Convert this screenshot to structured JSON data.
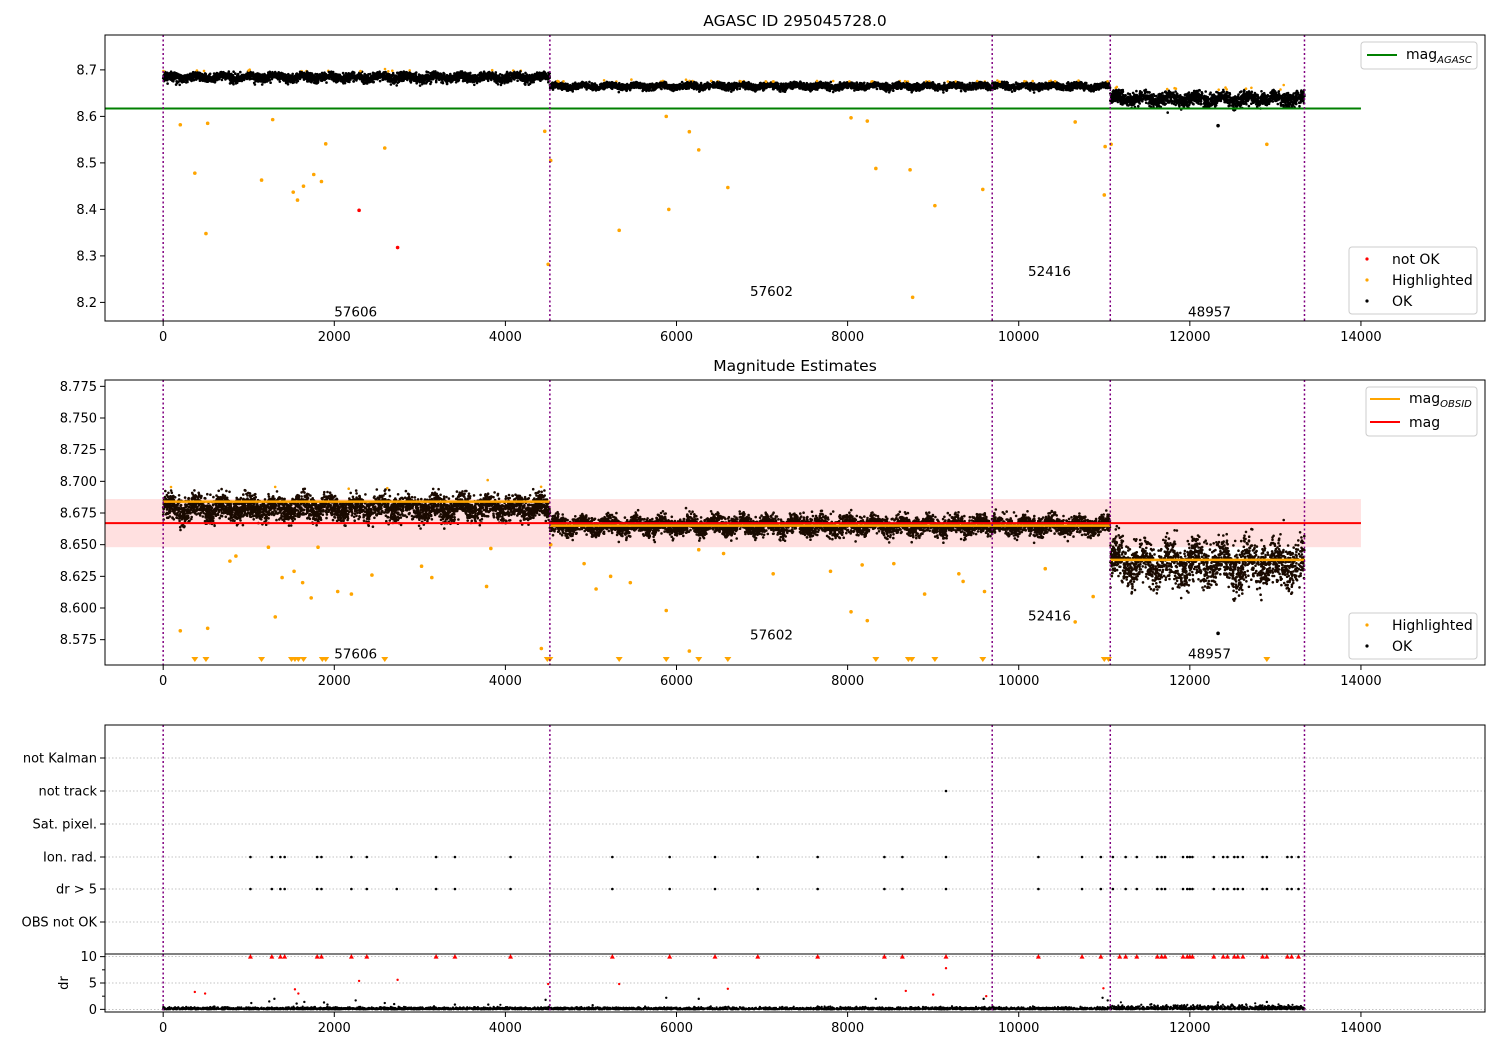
{
  "figure": {
    "title": "AGASC ID 295045728.0"
  },
  "chart_data": [
    {
      "type": "scatter",
      "title": "AGASC ID 295045728.0",
      "xlim": [
        -680,
        15450
      ],
      "ylim": [
        8.16,
        8.775
      ],
      "xticks": [
        0,
        2000,
        4000,
        6000,
        8000,
        10000,
        12000,
        14000
      ],
      "xtick_labels": [
        "0",
        "2000",
        "4000",
        "6000",
        "8000",
        "10000",
        "12000",
        "14000"
      ],
      "yticks": [
        8.2,
        8.3,
        8.4,
        8.5,
        8.6,
        8.7
      ],
      "ytick_labels": [
        "8.2",
        "8.3",
        "8.4",
        "8.5",
        "8.6",
        "8.7"
      ],
      "obs_boundaries": [
        0,
        4520,
        9690,
        11070,
        13340
      ],
      "obsids": [
        {
          "label": "57606",
          "x": 2250,
          "y": 8.18
        },
        {
          "label": "57602",
          "x": 7110,
          "y": 8.225
        },
        {
          "label": "52416",
          "x": 10360,
          "y": 8.268
        },
        {
          "label": "48957",
          "x": 12230,
          "y": 8.18
        }
      ],
      "mag_agasc": 8.617,
      "segment_levels": [
        {
          "x0": 0,
          "x1": 4520,
          "level": 8.684,
          "spread": 0.008
        },
        {
          "x0": 4520,
          "x1": 9690,
          "level": 8.665,
          "spread": 0.006
        },
        {
          "x0": 9690,
          "x1": 11070,
          "level": 8.665,
          "spread": 0.006
        },
        {
          "x0": 11070,
          "x1": 13340,
          "level": 8.638,
          "spread": 0.012
        }
      ],
      "series": [
        {
          "name": "not OK",
          "color": "#ff0000",
          "points": [
            [
              2290,
              8.398
            ],
            [
              2740,
              8.318
            ]
          ]
        },
        {
          "name": "Highlighted",
          "color": "#ffa500",
          "points": [
            [
              200,
              8.582
            ],
            [
              370,
              8.478
            ],
            [
              500,
              8.348
            ],
            [
              520,
              8.585
            ],
            [
              1150,
              8.463
            ],
            [
              1280,
              8.593
            ],
            [
              1520,
              8.437
            ],
            [
              1570,
              8.42
            ],
            [
              1640,
              8.45
            ],
            [
              1760,
              8.475
            ],
            [
              1850,
              8.46
            ],
            [
              1900,
              8.541
            ],
            [
              2590,
              8.532
            ],
            [
              4460,
              8.568
            ],
            [
              4500,
              8.282
            ],
            [
              4530,
              8.505
            ],
            [
              5330,
              8.355
            ],
            [
              5880,
              8.6
            ],
            [
              5910,
              8.4
            ],
            [
              6150,
              8.567
            ],
            [
              6260,
              8.528
            ],
            [
              6600,
              8.447
            ],
            [
              8040,
              8.597
            ],
            [
              8230,
              8.59
            ],
            [
              8330,
              8.488
            ],
            [
              8730,
              8.485
            ],
            [
              8760,
              8.211
            ],
            [
              9020,
              8.408
            ],
            [
              9580,
              8.443
            ],
            [
              10660,
              8.588
            ],
            [
              11000,
              8.431
            ],
            [
              11010,
              8.535
            ],
            [
              11080,
              8.54
            ],
            [
              12900,
              8.54
            ]
          ]
        },
        {
          "name": "OK",
          "color": "#000000",
          "points": [
            [
              12330,
              8.58
            ]
          ]
        }
      ],
      "legend_upper": [
        {
          "label": "mag",
          "subscript": "AGASC",
          "color": "#008000"
        }
      ],
      "legend_lower": [
        {
          "label": "not OK",
          "color": "#ff0000"
        },
        {
          "label": "Highlighted",
          "color": "#ffa500"
        },
        {
          "label": "OK",
          "color": "#000000"
        }
      ]
    },
    {
      "type": "scatter",
      "title": "Magnitude Estimates",
      "xlim": [
        -680,
        15450
      ],
      "ylim": [
        8.555,
        8.78
      ],
      "xticks": [
        0,
        2000,
        4000,
        6000,
        8000,
        10000,
        12000,
        14000
      ],
      "xtick_labels": [
        "0",
        "2000",
        "4000",
        "6000",
        "8000",
        "10000",
        "12000",
        "14000"
      ],
      "yticks": [
        8.575,
        8.6,
        8.625,
        8.65,
        8.675,
        8.7,
        8.725,
        8.75,
        8.775
      ],
      "ytick_labels": [
        "8.575",
        "8.600",
        "8.625",
        "8.650",
        "8.675",
        "8.700",
        "8.725",
        "8.750",
        "8.775"
      ],
      "obs_boundaries": [
        0,
        4520,
        9690,
        11070,
        13340
      ],
      "obsids": [
        {
          "label": "57606",
          "x": 2250,
          "y": 8.564
        },
        {
          "label": "57602",
          "x": 7110,
          "y": 8.579
        },
        {
          "label": "52416",
          "x": 10360,
          "y": 8.594
        },
        {
          "label": "48957",
          "x": 12230,
          "y": 8.564
        }
      ],
      "mag": 8.667,
      "mag_band": [
        8.648,
        8.686
      ],
      "mag_obsid": [
        {
          "x0": 0,
          "x1": 4520,
          "value": 8.684
        },
        {
          "x0": 4520,
          "x1": 11070,
          "value": 8.665
        },
        {
          "x0": 11070,
          "x1": 13340,
          "value": 8.638
        }
      ],
      "segment_levels": [
        {
          "x0": 0,
          "x1": 4520,
          "level": 8.679,
          "spread": 0.008
        },
        {
          "x0": 4520,
          "x1": 9690,
          "level": 8.665,
          "spread": 0.006
        },
        {
          "x0": 9690,
          "x1": 11070,
          "level": 8.665,
          "spread": 0.006
        },
        {
          "x0": 11070,
          "x1": 13340,
          "level": 8.635,
          "spread": 0.014
        }
      ],
      "series": [
        {
          "name": "Highlighted",
          "color": "#ffa500",
          "points": [
            [
              200,
              8.582
            ],
            [
              520,
              8.584
            ],
            [
              780,
              8.637
            ],
            [
              850,
              8.641
            ],
            [
              1230,
              8.648
            ],
            [
              1310,
              8.593
            ],
            [
              1390,
              8.624
            ],
            [
              1530,
              8.629
            ],
            [
              1630,
              8.62
            ],
            [
              1730,
              8.608
            ],
            [
              1810,
              8.648
            ],
            [
              2040,
              8.613
            ],
            [
              2200,
              8.611
            ],
            [
              2440,
              8.626
            ],
            [
              3020,
              8.633
            ],
            [
              3140,
              8.624
            ],
            [
              3780,
              8.617
            ],
            [
              3830,
              8.647
            ],
            [
              4420,
              8.568
            ],
            [
              4530,
              8.65
            ],
            [
              4920,
              8.635
            ],
            [
              5060,
              8.615
            ],
            [
              5230,
              8.625
            ],
            [
              5460,
              8.62
            ],
            [
              5880,
              8.598
            ],
            [
              6150,
              8.566
            ],
            [
              6260,
              8.646
            ],
            [
              6550,
              8.643
            ],
            [
              7130,
              8.627
            ],
            [
              7800,
              8.629
            ],
            [
              8040,
              8.597
            ],
            [
              8170,
              8.634
            ],
            [
              8230,
              8.59
            ],
            [
              8540,
              8.635
            ],
            [
              8900,
              8.611
            ],
            [
              9300,
              8.627
            ],
            [
              9350,
              8.621
            ],
            [
              9600,
              8.613
            ],
            [
              10310,
              8.631
            ],
            [
              10660,
              8.589
            ],
            [
              10870,
              8.609
            ]
          ]
        },
        {
          "name": "OK",
          "color": "#000000",
          "points": [
            [
              12330,
              8.58
            ]
          ]
        }
      ],
      "offscale_x": [
        370,
        500,
        1150,
        1500,
        1540,
        1580,
        1640,
        1860,
        1900,
        2590,
        4490,
        4520,
        5330,
        5880,
        6260,
        6600,
        8330,
        8710,
        8750,
        9020,
        9580,
        11000,
        11050,
        12900
      ],
      "legend_upper": [
        {
          "label": "mag",
          "subscript": "OBSID",
          "color": "#ffa500"
        },
        {
          "label": "mag",
          "subscript": "",
          "color": "#ff0000"
        }
      ],
      "legend_lower": [
        {
          "label": "Highlighted",
          "color": "#ffa500"
        },
        {
          "label": "OK",
          "color": "#000000"
        }
      ]
    },
    {
      "type": "scatter",
      "title": "",
      "xlim": [
        -680,
        15450
      ],
      "xticks": [
        0,
        2000,
        4000,
        6000,
        8000,
        10000,
        12000,
        14000
      ],
      "xtick_labels": [
        "0",
        "2000",
        "4000",
        "6000",
        "8000",
        "10000",
        "12000",
        "14000"
      ],
      "obs_boundaries": [
        0,
        4520,
        9690,
        11070,
        13340
      ],
      "flag_categories": [
        "not Kalman",
        "not track",
        "Sat. pixel.",
        "Ion. rad.",
        "dr > 5",
        "OBS not OK"
      ],
      "flag_points": {
        "not track": [
          9150
        ],
        "Ion. rad.": [
          1020,
          1270,
          1370,
          1420,
          1800,
          1850,
          2200,
          2380,
          3190,
          3410,
          4060,
          5250,
          5920,
          6450,
          6950,
          7650,
          8430,
          8640,
          9150,
          10230,
          10740,
          10960,
          11100,
          11250,
          11380,
          11620,
          11670,
          11710,
          11920,
          11970,
          12000,
          12030,
          12280,
          12390,
          12440,
          12520,
          12560,
          12620,
          12850,
          12900,
          13140,
          13190,
          13270
        ],
        "dr > 5": [
          1020,
          1270,
          1370,
          1420,
          1800,
          1850,
          2200,
          2380,
          2730,
          3190,
          3410,
          4060,
          5250,
          5920,
          6450,
          6950,
          7650,
          8430,
          8640,
          9150,
          10230,
          10740,
          10960,
          11100,
          11250,
          11380,
          11620,
          11670,
          11710,
          11920,
          11970,
          12000,
          12030,
          12280,
          12390,
          12440,
          12520,
          12560,
          12620,
          12850,
          12900,
          13140,
          13190,
          13270
        ]
      },
      "dr": {
        "ylabel": "dr",
        "ylim": [
          -0.5,
          10.5
        ],
        "yticks": [
          0,
          5,
          10
        ],
        "ytick_labels": [
          "0",
          "5",
          "10"
        ],
        "capped_x": [
          1020,
          1270,
          1370,
          1420,
          1800,
          1850,
          2200,
          2380,
          3190,
          3410,
          4060,
          5250,
          5920,
          6450,
          6950,
          7650,
          8430,
          8640,
          9150,
          10230,
          10740,
          10960,
          11180,
          11250,
          11380,
          11620,
          11670,
          11710,
          11920,
          11970,
          12000,
          12030,
          12280,
          12390,
          12440,
          12520,
          12560,
          12620,
          12850,
          12900,
          13140,
          13190,
          13270
        ],
        "red_points": [
          [
            370,
            3.3
          ],
          [
            490,
            3.0
          ],
          [
            1540,
            3.8
          ],
          [
            1580,
            3.0
          ],
          [
            2290,
            5.4
          ],
          [
            2740,
            5.6
          ],
          [
            4500,
            4.8
          ],
          [
            5330,
            4.8
          ],
          [
            6600,
            3.9
          ],
          [
            8680,
            3.5
          ],
          [
            9000,
            2.8
          ],
          [
            9150,
            7.8
          ],
          [
            9620,
            2.5
          ],
          [
            10990,
            4.0
          ]
        ],
        "black_points": [
          [
            600,
            0.5
          ],
          [
            1030,
            1.2
          ],
          [
            1240,
            1.5
          ],
          [
            1300,
            2.0
          ],
          [
            1560,
            1.1
          ],
          [
            1650,
            1.4
          ],
          [
            1880,
            1.3
          ],
          [
            1920,
            0.9
          ],
          [
            2250,
            1.7
          ],
          [
            2590,
            1.2
          ],
          [
            2700,
            1.0
          ],
          [
            3410,
            0.9
          ],
          [
            3800,
            0.9
          ],
          [
            4470,
            1.8
          ],
          [
            5020,
            0.8
          ],
          [
            5880,
            2.2
          ],
          [
            6260,
            2.0
          ],
          [
            8330,
            2.0
          ],
          [
            9590,
            2.0
          ],
          [
            10980,
            2.2
          ],
          [
            11040,
            1.7
          ],
          [
            12330,
            1.3
          ],
          [
            12900,
            1.4
          ]
        ]
      }
    }
  ]
}
